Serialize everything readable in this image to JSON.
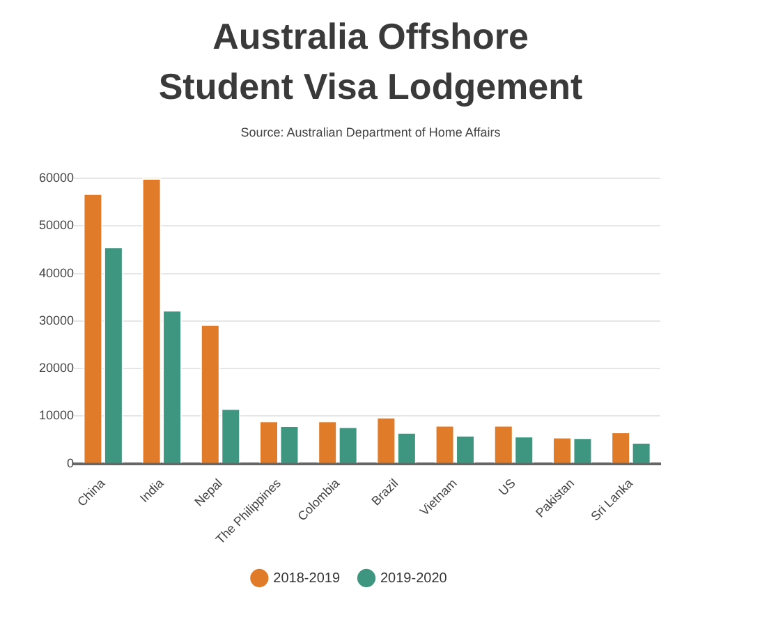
{
  "chart_data": {
    "type": "bar",
    "title": "Australia Offshore Student Visa Lodgement",
    "annotations": [
      "Source: Australian Department of Home Affairs"
    ],
    "categories": [
      "China",
      "India",
      "Nepal",
      "The Philippines",
      "Colombia",
      "Brazil",
      "Vietnam",
      "US",
      "Pakistan",
      "Sri Lanka"
    ],
    "series": [
      {
        "name": "2018-2019",
        "color": "#e07b2a",
        "values": [
          56800,
          60000,
          29300,
          9000,
          9000,
          9800,
          8100,
          8100,
          5600,
          6700
        ]
      },
      {
        "name": "2019-2020",
        "color": "#3f9680",
        "values": [
          45600,
          32300,
          11600,
          8000,
          7800,
          6600,
          6000,
          5800,
          5500,
          4500
        ]
      }
    ],
    "ylim": [
      0,
      60000
    ],
    "yticks": [
      0,
      10000,
      20000,
      30000,
      40000,
      50000,
      60000
    ],
    "grid": "y",
    "legend": "bottom"
  }
}
